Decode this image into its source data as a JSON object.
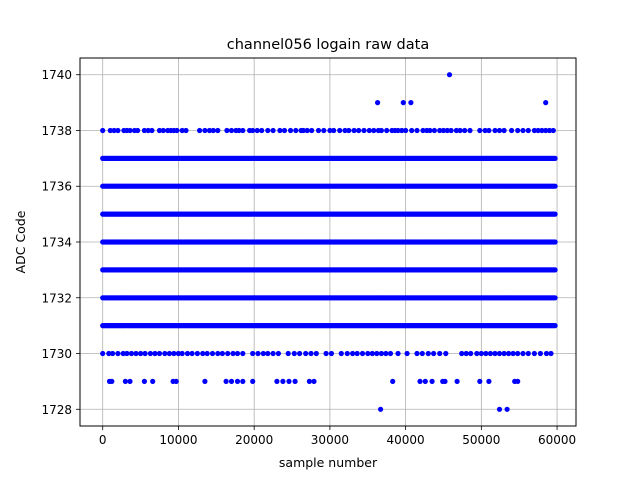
{
  "chart_data": {
    "type": "scatter",
    "title": "channel056 logain raw data",
    "xlabel": "sample number",
    "ylabel": "ADC Code",
    "xlim": [
      -3000,
      62500
    ],
    "ylim": [
      1727.4,
      1740.6
    ],
    "xticks": [
      0,
      10000,
      20000,
      30000,
      40000,
      50000,
      60000
    ],
    "xtick_labels": [
      "0",
      "10000",
      "20000",
      "30000",
      "40000",
      "50000",
      "60000"
    ],
    "yticks": [
      1728,
      1730,
      1732,
      1734,
      1736,
      1738,
      1740
    ],
    "ytick_labels": [
      "1728",
      "1730",
      "1732",
      "1734",
      "1736",
      "1738",
      "1740"
    ],
    "grid": true,
    "legend": "none",
    "marker_color": "#0000ff",
    "sample_range": [
      0,
      59800
    ],
    "dense_levels": [
      1731,
      1732,
      1733,
      1734,
      1735,
      1736,
      1737
    ],
    "sparse_levels": {
      "1738": [
        0,
        1000,
        1500,
        2000,
        2800,
        3200,
        3600,
        4200,
        4600,
        5500,
        6000,
        6500,
        7500,
        8000,
        8600,
        9000,
        9400,
        9800,
        10500,
        11000,
        12800,
        13500,
        14100,
        14600,
        15200,
        16400,
        17000,
        17600,
        18000,
        18500,
        19400,
        19800,
        20400,
        21000,
        21800,
        22500,
        23400,
        24000,
        24800,
        25500,
        26200,
        26500,
        27000,
        27600,
        28500,
        29200,
        30000,
        30500,
        31300,
        32000,
        32500,
        33200,
        33800,
        34500,
        35200,
        35800,
        36400,
        36800,
        37500,
        38200,
        38600,
        39000,
        39500,
        40000,
        40800,
        41500,
        42300,
        42800,
        43200,
        43800,
        44500,
        45000,
        45500,
        46000,
        46700,
        47200,
        47800,
        48500,
        49800,
        50500,
        51000,
        51800,
        52400,
        53000,
        54000,
        54800,
        55500,
        56200,
        57000,
        57500,
        58000,
        58500,
        59000,
        59500
      ],
      "1730": [
        0,
        800,
        1300,
        2000,
        2700,
        3200,
        3800,
        4400,
        5000,
        5600,
        6300,
        6900,
        7500,
        8200,
        8800,
        9400,
        10000,
        10500,
        11200,
        11800,
        12500,
        13200,
        13800,
        14500,
        15200,
        15800,
        16500,
        17200,
        17800,
        18500,
        19800,
        20500,
        21200,
        21800,
        22500,
        23200,
        24500,
        25300,
        26000,
        26800,
        27500,
        28200,
        29500,
        30200,
        31500,
        32300,
        33000,
        33600,
        34300,
        35000,
        35600,
        36200,
        36800,
        37400,
        38000,
        39000,
        40200,
        41500,
        42200,
        43000,
        43700,
        44500,
        45300,
        47400,
        48000,
        48600,
        49400,
        50000,
        50600,
        51200,
        51800,
        52400,
        53000,
        53600,
        54200,
        54800,
        55500,
        56200,
        57000,
        57800,
        58600,
        59200
      ],
      "1729": [
        900,
        1200,
        3000,
        3600,
        5500,
        6600,
        9300,
        9700,
        13500,
        16300,
        17000,
        17800,
        18500,
        19800,
        23000,
        23800,
        24600,
        25400,
        27300,
        27900,
        38300,
        41900,
        42600,
        43500,
        44900,
        45200,
        46800,
        49800,
        51000,
        54400,
        54800
      ],
      "1739": [
        36300,
        39700,
        40700,
        58500
      ],
      "1740": [
        45800
      ],
      "1728": [
        36700,
        52400,
        53400
      ]
    }
  }
}
